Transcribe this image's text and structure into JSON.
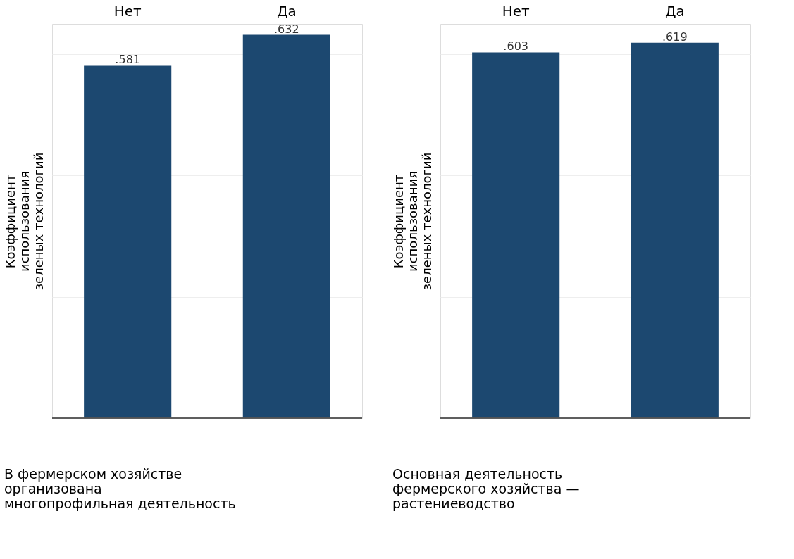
{
  "chart_data": [
    {
      "type": "bar",
      "categories": [
        "Нет",
        "Да"
      ],
      "values": [
        0.581,
        0.632
      ],
      "color": "#1c4870",
      "value_labels": [
        ".581",
        ".632"
      ],
      "ylim": [
        0,
        0.65
      ],
      "yticks": [
        {
          "value": 0,
          "label": null
        },
        {
          "value": 0.2,
          "label": null
        },
        {
          "value": 0.4,
          "label": null
        },
        {
          "value": 0.6,
          "label": null
        }
      ],
      "grid": "y",
      "tick_labels": "x",
      "ylabel": "Коэффициент\nиспользования\nзеленых технологий",
      "xlabel": "В фермерском хозяйстве\nорганизована\nмногопрофильная деятельность"
    },
    {
      "type": "bar",
      "categories": [
        "Нет",
        "Да"
      ],
      "values": [
        0.603,
        0.619
      ],
      "color": "#1c4870",
      "value_labels": [
        ".603",
        ".619"
      ],
      "ylim": [
        0,
        0.65
      ],
      "yticks": [
        {
          "value": 0,
          "label": null
        },
        {
          "value": 0.2,
          "label": null
        },
        {
          "value": 0.4,
          "label": null
        },
        {
          "value": 0.6,
          "label": null
        }
      ],
      "grid": "y",
      "tick_labels": "x",
      "ylabel": "Коэффициент\nиспользования\nзеленых технологий",
      "xlabel": "Основная деятельность\nфермерского хозяйства —\nрастениеводство"
    }
  ]
}
